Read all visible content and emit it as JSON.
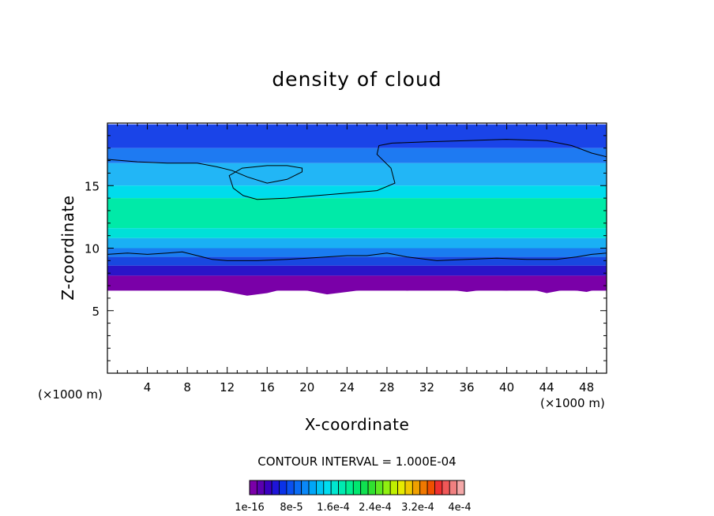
{
  "chart_data": {
    "type": "heatmap",
    "title": "density of cloud",
    "xlabel": "X-coordinate",
    "ylabel": "Z-coordinate",
    "x_unit": "(×1000 m)",
    "xlim": [
      0,
      50
    ],
    "ylim": [
      0,
      20
    ],
    "x_ticks": [
      "4",
      "8",
      "12",
      "16",
      "20",
      "24",
      "28",
      "32",
      "36",
      "40",
      "44",
      "48"
    ],
    "y_ticks": [
      "5",
      "10",
      "15"
    ],
    "contour_interval": "CONTOUR INTERVAL = 1.000E-04",
    "colorbar_labels": [
      "1e-16",
      "8e-5",
      "1.6e-4",
      "2.4e-4",
      "3.2e-4",
      "4e-4"
    ],
    "colorbar_colors": [
      "#7a00a8",
      "#5a00b0",
      "#3a00c0",
      "#1e14d8",
      "#0a32e8",
      "#0a50f0",
      "#0a6cf4",
      "#0a88f8",
      "#00a6f8",
      "#00c4f4",
      "#00dcf0",
      "#00e6d0",
      "#00eab0",
      "#00ee90",
      "#00e870",
      "#10e050",
      "#30e030",
      "#60e820",
      "#90f010",
      "#c0f000",
      "#e6ea00",
      "#f0c800",
      "#f0a000",
      "#f07800",
      "#f05000",
      "#f03030",
      "#f05858",
      "#f08080",
      "#f4a8a8"
    ],
    "cloud_bands": [
      {
        "z_top_km": 19.9,
        "z_bottom_km": 18.0,
        "color": "#1a44e8"
      },
      {
        "z_top_km": 18.0,
        "z_bottom_km": 16.8,
        "color": "#1e7af2"
      },
      {
        "z_top_km": 16.8,
        "z_bottom_km": 15.0,
        "color": "#22b6f6"
      },
      {
        "z_top_km": 15.0,
        "z_bottom_km": 14.0,
        "color": "#00dcec"
      },
      {
        "z_top_km": 14.0,
        "z_bottom_km": 11.6,
        "color": "#00eaa8"
      },
      {
        "z_top_km": 11.6,
        "z_bottom_km": 10.8,
        "color": "#00e0d8"
      },
      {
        "z_top_km": 10.8,
        "z_bottom_km": 10.0,
        "color": "#1ab0f4"
      },
      {
        "z_top_km": 10.0,
        "z_bottom_km": 9.3,
        "color": "#1a7cf0"
      },
      {
        "z_top_km": 9.3,
        "z_bottom_km": 8.6,
        "color": "#1848e0"
      },
      {
        "z_top_km": 8.6,
        "z_bottom_km": 7.8,
        "color": "#2a14c8"
      },
      {
        "z_top_km": 7.8,
        "z_bottom_km": 6.6,
        "color": "#7a00a8"
      }
    ],
    "contours": [
      {
        "level": "upper",
        "points": [
          [
            0,
            17.1
          ],
          [
            3,
            16.9
          ],
          [
            6,
            16.8
          ],
          [
            9,
            16.8
          ],
          [
            11,
            16.5
          ],
          [
            12.5,
            16.2
          ],
          [
            14,
            15.7
          ],
          [
            16,
            15.2
          ],
          [
            18,
            15.5
          ],
          [
            19.5,
            16.1
          ],
          [
            19.5,
            16.4
          ],
          [
            18,
            16.6
          ],
          [
            16,
            16.6
          ],
          [
            13.5,
            16.4
          ],
          [
            12.2,
            15.8
          ],
          [
            12.6,
            14.8
          ],
          [
            13.6,
            14.2
          ],
          [
            15,
            13.9
          ],
          [
            18,
            14.0
          ],
          [
            21,
            14.2
          ],
          [
            24,
            14.4
          ],
          [
            27,
            14.6
          ],
          [
            28.8,
            15.2
          ],
          [
            28.4,
            16.4
          ],
          [
            27,
            17.5
          ],
          [
            27.2,
            18.2
          ],
          [
            28.5,
            18.4
          ],
          [
            32,
            18.5
          ],
          [
            36,
            18.6
          ],
          [
            40,
            18.7
          ],
          [
            44,
            18.6
          ],
          [
            46.5,
            18.2
          ],
          [
            48.5,
            17.6
          ],
          [
            50,
            17.3
          ]
        ]
      },
      {
        "level": "lower",
        "points": [
          [
            0,
            9.5
          ],
          [
            2,
            9.6
          ],
          [
            4,
            9.5
          ],
          [
            6,
            9.6
          ],
          [
            7.5,
            9.7
          ],
          [
            9,
            9.4
          ],
          [
            10.5,
            9.1
          ],
          [
            12,
            9.0
          ],
          [
            15,
            9.0
          ],
          [
            18,
            9.1
          ],
          [
            20,
            9.2
          ],
          [
            22,
            9.3
          ],
          [
            24,
            9.4
          ],
          [
            26,
            9.4
          ],
          [
            28,
            9.6
          ],
          [
            30,
            9.3
          ],
          [
            33,
            9.0
          ],
          [
            36,
            9.1
          ],
          [
            39,
            9.2
          ],
          [
            42,
            9.1
          ],
          [
            45,
            9.1
          ],
          [
            47,
            9.3
          ],
          [
            48.5,
            9.5
          ],
          [
            50,
            9.6
          ]
        ]
      }
    ],
    "cloud_base": [
      [
        0,
        7.0
      ],
      [
        2,
        7.0
      ],
      [
        4,
        6.8
      ],
      [
        6,
        6.7
      ],
      [
        8,
        6.9
      ],
      [
        10,
        6.8
      ],
      [
        12,
        6.5
      ],
      [
        14,
        6.2
      ],
      [
        16,
        6.4
      ],
      [
        18,
        6.8
      ],
      [
        20,
        6.6
      ],
      [
        22,
        6.3
      ],
      [
        24,
        6.5
      ],
      [
        26,
        6.7
      ],
      [
        28,
        6.9
      ],
      [
        30,
        6.6
      ],
      [
        32,
        6.8
      ],
      [
        34,
        6.7
      ],
      [
        36,
        6.5
      ],
      [
        38,
        6.7
      ],
      [
        40,
        6.6
      ],
      [
        42,
        6.8
      ],
      [
        44,
        6.4
      ],
      [
        46,
        6.7
      ],
      [
        48,
        6.5
      ],
      [
        50,
        6.9
      ]
    ]
  }
}
